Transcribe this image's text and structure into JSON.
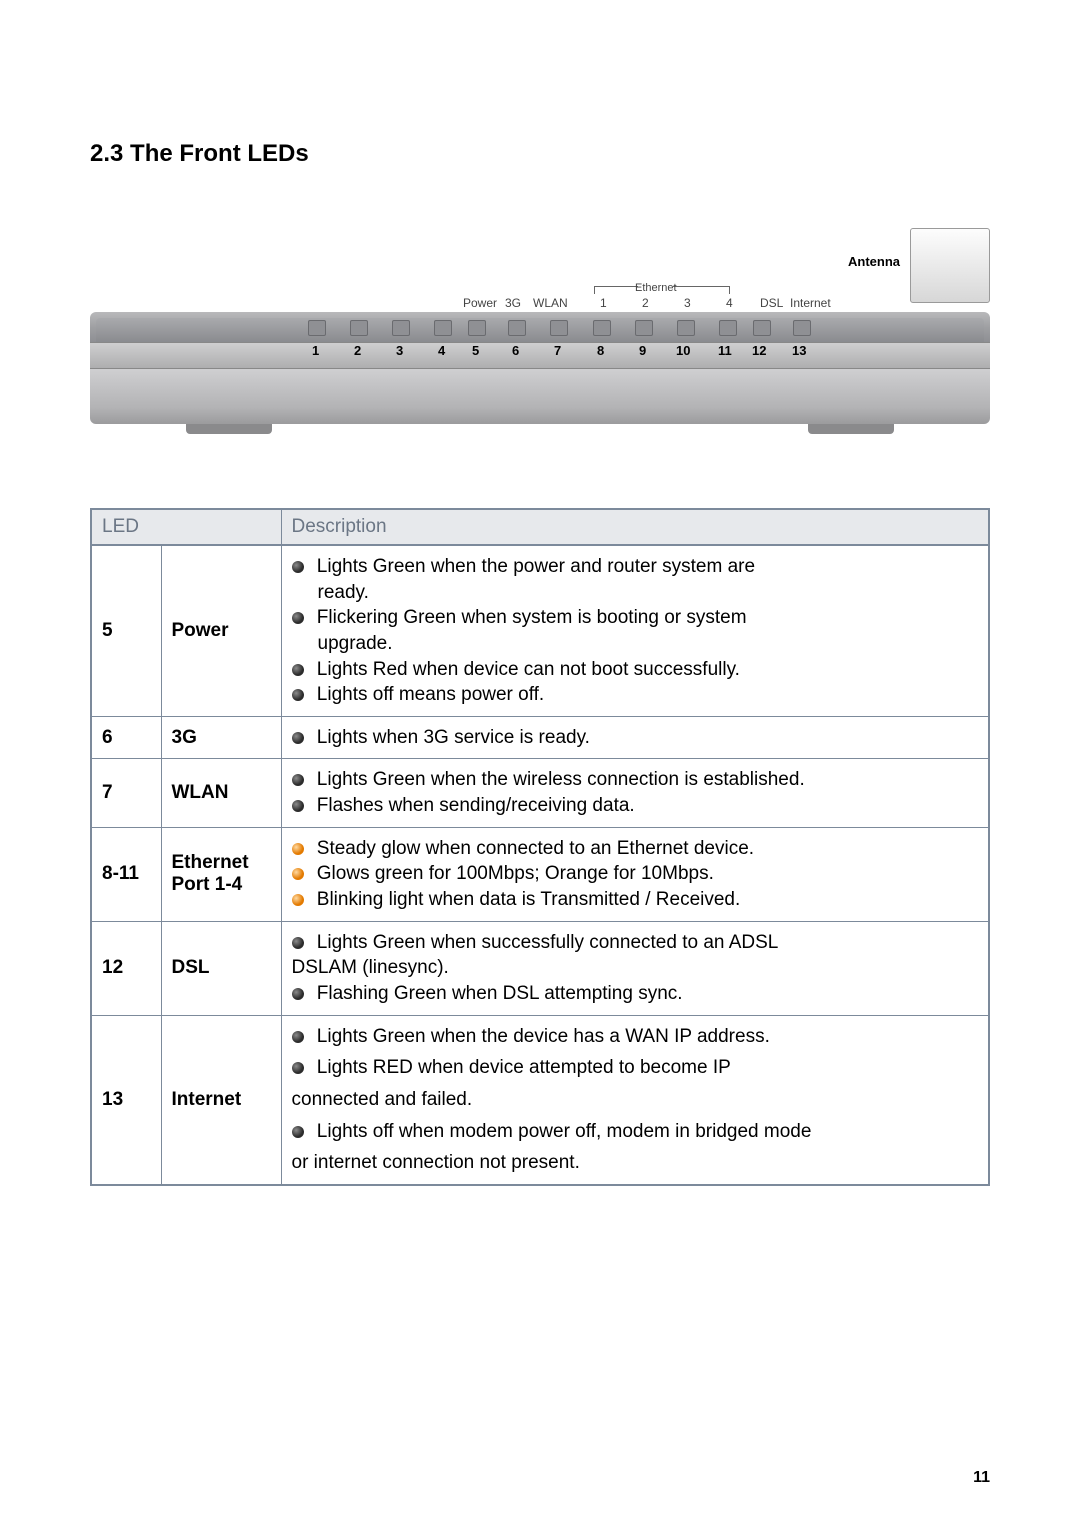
{
  "section_title": "2.3 The Front LEDs",
  "page_number": "11",
  "diagram": {
    "antenna_label": "Antenna",
    "top_labels": {
      "power": "Power",
      "g3": "3G",
      "wlan": "WLAN",
      "ethernet": "Ethernet",
      "e1": "1",
      "e2": "2",
      "e3": "3",
      "e4": "4",
      "dsl": "DSL",
      "internet": "Internet"
    },
    "numbers": {
      "n1": "1",
      "n2": "2",
      "n3": "3",
      "n4": "4",
      "n5": "5",
      "n6": "6",
      "n7": "7",
      "n8": "8",
      "n9": "9",
      "n10": "10",
      "n11": "11",
      "n12": "12",
      "n13": "13"
    }
  },
  "table": {
    "headers": {
      "led": "LED",
      "desc": "Description"
    },
    "rows": [
      {
        "num": "5",
        "name": "Power",
        "items": [
          {
            "bullet": "dark",
            "text_a": " Lights Green when the power and router system are",
            "text_b": "ready.",
            "justify": true
          },
          {
            "bullet": "dark",
            "text_a": " Flickering Green when system is booting or system",
            "text_b": "upgrade.",
            "justify": true
          },
          {
            "bullet": "dark",
            "text_a": " Lights Red when device can not boot successfully."
          },
          {
            "bullet": "dark",
            "text_a": " Lights off means power off."
          }
        ]
      },
      {
        "num": "6",
        "name": "3G",
        "items": [
          {
            "bullet": "dark",
            "text_a": " Lights when 3G service is ready."
          }
        ]
      },
      {
        "num": "7",
        "name": "WLAN",
        "items": [
          {
            "bullet": "dark",
            "text_a": " Lights Green when the wireless connection is established."
          },
          {
            "bullet": "dark",
            "text_a": " Flashes when sending/receiving data."
          }
        ]
      },
      {
        "num": "8-11",
        "name": "Ethernet\nPort 1-4",
        "items": [
          {
            "bullet": "orange",
            "text_a": " Steady glow when connected to an Ethernet device."
          },
          {
            "bullet": "orange",
            "text_a": " Glows green for 100Mbps; Orange for 10Mbps."
          },
          {
            "bullet": "orange",
            "text_a": " Blinking light when data is Transmitted / Received."
          }
        ]
      },
      {
        "num": "12",
        "name": "DSL",
        "items": [
          {
            "bullet": "dark",
            "text_a": " Lights Green when successfully connected to an ADSL",
            "cont": "DSLAM (linesync).",
            "justify": true
          },
          {
            "bullet": "dark",
            "text_a": " Flashing Green when DSL attempting sync."
          }
        ]
      },
      {
        "num": "13",
        "name": "Internet",
        "items": [
          {
            "bullet": "dark",
            "text_a": " Lights Green when the device has a WAN IP address."
          },
          {
            "bullet": "dark",
            "text_a": " Lights RED when device attempted to become IP",
            "cont": "connected and failed.",
            "justify": true,
            "spaced": true
          },
          {
            "bullet": "dark",
            "text_a": " Lights off when modem power off, modem in bridged mode",
            "cont": "or internet connection not present.",
            "spaced": true
          }
        ]
      }
    ]
  }
}
